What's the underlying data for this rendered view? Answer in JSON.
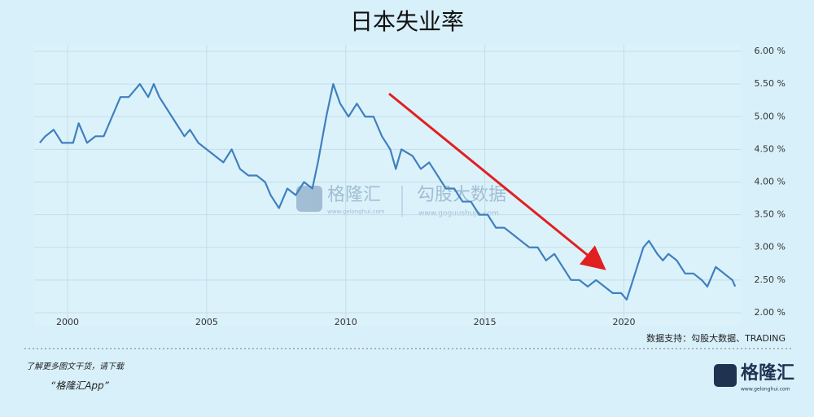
{
  "chart_data": {
    "type": "line",
    "title": "日本失业率",
    "source": "数据支持：勾股大数据、TRADING",
    "footer": {
      "line1": "了解更多图文干货，请下载",
      "line2": "“格隆汇App”",
      "logo": "格隆汇",
      "logo_url": "www.gelonghui.com"
    },
    "watermark": {
      "brand": "格隆汇",
      "brand_url": "www.gelonghui.com",
      "data": "勾股大数据",
      "data_url": "www.goguushuju.com"
    },
    "xlim": [
      1998.8,
      2024.2
    ],
    "ylim": [
      1.8,
      6.1
    ],
    "xticks": [
      2000,
      2005,
      2010,
      2015,
      2020
    ],
    "yticks": [
      {
        "value": 2,
        "label": "2.00 %"
      },
      {
        "value": 2.5,
        "label": "2.50 %"
      },
      {
        "value": 3,
        "label": "3.00 %"
      },
      {
        "value": 3.5,
        "label": "3.50 %"
      },
      {
        "value": 4,
        "label": "4.00 %"
      },
      {
        "value": 4.5,
        "label": "4.50 %"
      },
      {
        "value": 5,
        "label": "5.00 %"
      },
      {
        "value": 5.5,
        "label": "5.50 %"
      },
      {
        "value": 6,
        "label": "6.00 %"
      }
    ],
    "grid": true,
    "x": [
      1999.0,
      1999.2,
      1999.5,
      1999.8,
      2000.2,
      2000.4,
      2000.7,
      2001.0,
      2001.3,
      2001.6,
      2001.9,
      2002.2,
      2002.4,
      2002.6,
      2002.9,
      2003.1,
      2003.3,
      2003.6,
      2003.9,
      2004.2,
      2004.4,
      2004.7,
      2005.0,
      2005.3,
      2005.6,
      2005.9,
      2006.2,
      2006.5,
      2006.8,
      2007.1,
      2007.3,
      2007.6,
      2007.9,
      2008.2,
      2008.5,
      2008.8,
      2009.0,
      2009.3,
      2009.55,
      2009.8,
      2010.1,
      2010.4,
      2010.7,
      2011.0,
      2011.3,
      2011.6,
      2011.8,
      2012.0,
      2012.4,
      2012.7,
      2013.0,
      2013.3,
      2013.6,
      2013.9,
      2014.2,
      2014.5,
      2014.8,
      2015.1,
      2015.4,
      2015.7,
      2016.0,
      2016.3,
      2016.6,
      2016.9,
      2017.2,
      2017.5,
      2017.8,
      2018.1,
      2018.4,
      2018.7,
      2019.0,
      2019.3,
      2019.6,
      2019.9,
      2020.1,
      2020.4,
      2020.7,
      2020.9,
      2021.2,
      2021.4,
      2021.6,
      2021.9,
      2022.2,
      2022.5,
      2022.8,
      2023.0,
      2023.3,
      2023.6,
      2023.9,
      2024.0
    ],
    "series": [
      {
        "color": "#3f80be",
        "values": [
          4.6,
          4.7,
          4.8,
          4.6,
          4.6,
          4.9,
          4.6,
          4.7,
          4.7,
          5.0,
          5.3,
          5.3,
          5.4,
          5.5,
          5.3,
          5.5,
          5.3,
          5.1,
          4.9,
          4.7,
          4.8,
          4.6,
          4.5,
          4.4,
          4.3,
          4.5,
          4.2,
          4.1,
          4.1,
          4.0,
          3.8,
          3.6,
          3.9,
          3.8,
          4.0,
          3.9,
          4.3,
          5.0,
          5.5,
          5.2,
          5.0,
          5.2,
          5.0,
          5.0,
          4.7,
          4.5,
          4.2,
          4.5,
          4.4,
          4.2,
          4.3,
          4.1,
          3.9,
          3.9,
          3.7,
          3.7,
          3.5,
          3.5,
          3.3,
          3.3,
          3.2,
          3.1,
          3.0,
          3.0,
          2.8,
          2.9,
          2.7,
          2.5,
          2.5,
          2.4,
          2.5,
          2.4,
          2.3,
          2.3,
          2.2,
          2.6,
          3.0,
          3.1,
          2.9,
          2.8,
          2.9,
          2.8,
          2.6,
          2.6,
          2.5,
          2.4,
          2.7,
          2.6,
          2.5,
          2.4
        ]
      }
    ]
  }
}
